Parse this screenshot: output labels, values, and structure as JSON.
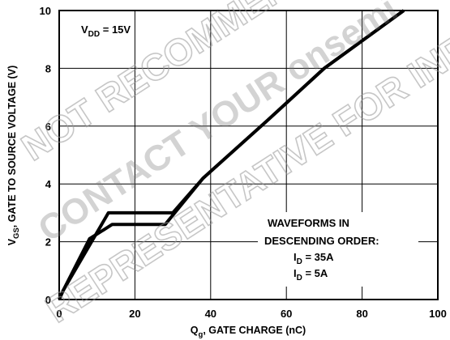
{
  "chart_data": {
    "type": "line",
    "xlabel": "Q",
    "xlabel_sub": "g",
    "xlabel_rest": ", GATE CHARGE (nC)",
    "ylabel": "V",
    "ylabel_sub": "GS",
    "ylabel_rest": ", GATE TO SOURCE VOLTAGE (V)",
    "xlim": [
      0,
      100
    ],
    "ylim": [
      0,
      10
    ],
    "xticks": [
      0,
      20,
      40,
      60,
      80,
      100
    ],
    "yticks": [
      0,
      2,
      4,
      6,
      8,
      10
    ],
    "grid": true,
    "series": [
      {
        "name": "I_D = 35A",
        "points": [
          [
            0,
            0
          ],
          [
            1,
            0.3
          ],
          [
            13,
            3.0
          ],
          [
            30,
            3.0
          ],
          [
            38,
            4.2
          ],
          [
            55,
            6.2
          ],
          [
            70,
            8.0
          ],
          [
            91,
            10.0
          ]
        ]
      },
      {
        "name": "I_D = 5A",
        "points": [
          [
            0,
            0
          ],
          [
            1,
            0.3
          ],
          [
            8,
            2.1
          ],
          [
            14,
            2.6
          ],
          [
            28,
            2.6
          ],
          [
            38,
            4.2
          ],
          [
            55,
            6.2
          ],
          [
            70,
            8.0
          ],
          [
            91,
            10.0
          ]
        ]
      }
    ],
    "annotations": {
      "vdd_label": "V",
      "vdd_sub": "DD",
      "vdd_rest": " = 15V",
      "waveforms_line1": "WAVEFORMS IN",
      "waveforms_line2": "DESCENDING ORDER:",
      "id1_label": "I",
      "id1_sub": "D",
      "id1_rest": " = 35A",
      "id2_label": "I",
      "id2_sub": "D",
      "id2_rest": " = 5A"
    }
  },
  "watermark": {
    "lines": [
      "NOT RECOMMENDED FOR NEW",
      "CONTACT YOUR onsemi",
      "REPRESENTATIVE FOR INFORMATION"
    ]
  }
}
